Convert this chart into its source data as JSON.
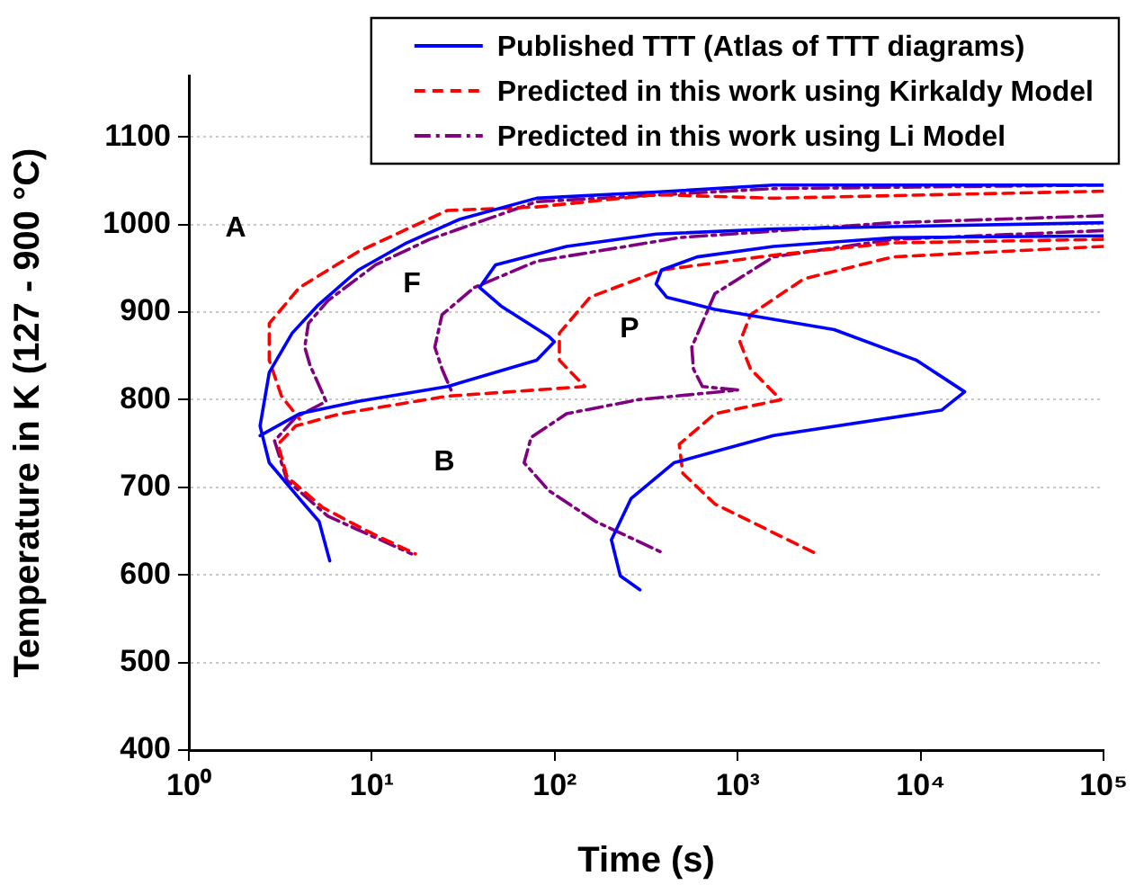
{
  "chart_data": {
    "type": "line",
    "xlabel": "Time (s)",
    "ylabel": "Temperature in K (127 - 900 °C)",
    "log": "x",
    "grid": "y",
    "legend": "top right",
    "marker": "none",
    "xlim": [
      1,
      100000
    ],
    "ylim": [
      400,
      1170
    ],
    "xticks": [
      {
        "value": 1,
        "label": "10⁰"
      },
      {
        "value": 10,
        "label": "10¹"
      },
      {
        "value": 100,
        "label": "10²"
      },
      {
        "value": 1000,
        "label": "10³"
      },
      {
        "value": 10000,
        "label": "10⁴"
      },
      {
        "value": 100000,
        "label": "10⁵"
      }
    ],
    "yticks": [
      400,
      500,
      600,
      700,
      800,
      900,
      1000,
      1100
    ],
    "annotations": [
      "A",
      "F",
      "P",
      "B"
    ],
    "series": [
      {
        "name": "Published TTT (Atlas of TTT diagrams)",
        "color": "#0000ff",
        "line_style": "solid",
        "x": [
          100000,
          1570,
          358,
          79.6,
          30.3,
          15.5,
          8.43,
          5.03,
          3.67,
          2.75,
          2.45,
          2.75,
          4.02,
          5.15,
          5.89
        ],
        "values": [
          1045,
          1045,
          1037,
          1030,
          1006,
          979,
          948,
          907,
          876,
          831,
          770,
          728,
          687,
          661,
          616
        ]
      },
      {
        "color": "#0000ff",
        "line_style": "solid",
        "x": [
          2.45,
          4.02,
          8.43,
          25.9,
          79.6,
          99.5,
          93,
          50.8,
          38.8,
          47.5,
          116,
          358,
          1570,
          100000
        ],
        "values": [
          759,
          784,
          798,
          815,
          845,
          866,
          872,
          907,
          928,
          954,
          975,
          989,
          995,
          1002
        ]
      },
      {
        "color": "#0000ff",
        "line_style": "solid",
        "x": [
          100000,
          7080,
          1570,
          600,
          383,
          358,
          409,
          750,
          3370,
          9480,
          17400,
          13000,
          1570,
          448,
          261,
          204,
          228,
          292
        ],
        "values": [
          987,
          985,
          975,
          963,
          948,
          932,
          917,
          903,
          880,
          845,
          809,
          788,
          759,
          728,
          687,
          640,
          599,
          583
        ]
      },
      {
        "name": "Predicted in this work using Kirkaldy Model",
        "color": "#ff0000",
        "line_style": "dashed",
        "x": [
          100000,
          1570,
          358,
          79.6,
          25.9,
          8.43,
          4.02,
          2.75,
          2.75,
          3.21,
          4.02
        ],
        "values": [
          1038,
          1030,
          1034,
          1020,
          1016,
          969,
          928,
          887,
          845,
          804,
          778
        ]
      },
      {
        "color": "#ff0000",
        "line_style": "dashed",
        "x": [
          100000,
          7080,
          1570,
          383,
          156,
          106,
          106,
          146,
          25.9,
          6.74,
          3.84,
          3.07,
          3.44,
          5.38,
          9.44,
          17.3
        ],
        "values": [
          983,
          979,
          965,
          948,
          917,
          876,
          845,
          815,
          804,
          784,
          770,
          749,
          712,
          677,
          650,
          624
        ]
      },
      {
        "color": "#ff0000",
        "line_style": "dashed",
        "x": [
          100000,
          7080,
          2300,
          1175,
          1028,
          1175,
          1720,
          750,
          479,
          501,
          750,
          2700
        ],
        "values": [
          975,
          963,
          938,
          897,
          866,
          835,
          800,
          784,
          749,
          716,
          681,
          624
        ]
      },
      {
        "name": "Predicted in this work using Li Model",
        "color": "#800080",
        "line_style": "dashdot",
        "x": [
          100000,
          1570,
          79.6,
          20.7,
          10.5,
          5.75,
          4.5,
          4.3,
          4.6,
          5.63,
          3.84,
          2.94,
          3.44,
          5.75,
          16.5
        ],
        "values": [
          1045,
          1041,
          1026,
          983,
          954,
          913,
          887,
          860,
          839,
          798,
          780,
          753,
          708,
          667,
          624
        ]
      },
      {
        "color": "#800080",
        "line_style": "dashdot",
        "x": [
          100000,
          7080,
          479,
          79.6,
          36.3,
          24.2,
          22.1,
          24.2,
          27.1
        ],
        "values": [
          1010,
          1002,
          985,
          958,
          928,
          897,
          860,
          835,
          811
        ]
      },
      {
        "color": "#800080",
        "line_style": "dashdot",
        "x": [
          100000,
          7080,
          1570,
          750,
          561,
          573,
          641,
          1000,
          286,
          116,
          74.3,
          68,
          93,
          167,
          400
        ],
        "values": [
          993,
          983,
          963,
          921,
          860,
          835,
          815,
          811,
          800,
          784,
          757,
          728,
          696,
          661,
          624
        ]
      }
    ]
  }
}
